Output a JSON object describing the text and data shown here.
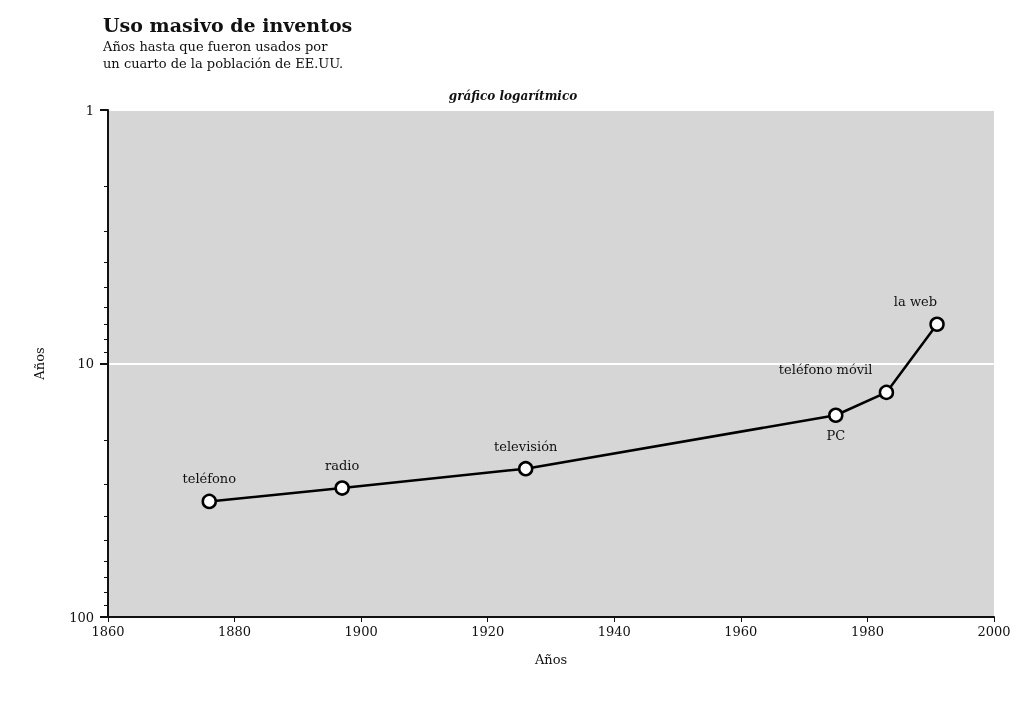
{
  "chart_data": {
    "type": "line",
    "title": "Uso masivo de inventos",
    "subtitle": "Años hasta que fueron usados por\nun cuarto de la población de EE.UU.",
    "xlabel": "Años",
    "ylabel": "Años",
    "x": [
      1876,
      1897,
      1926,
      1975,
      1983,
      1991
    ],
    "series": [
      {
        "color": "#000000",
        "values": [
          35,
          31,
          26,
          16,
          13,
          7
        ]
      }
    ],
    "xlim": [
      1860,
      2000
    ],
    "xticks": [
      1860,
      1880,
      1900,
      1920,
      1940,
      1960,
      1980,
      2000
    ],
    "ylim": [
      100,
      1
    ],
    "yticks": [
      1,
      10,
      100
    ],
    "log": "y",
    "grid": "y",
    "marker": "circle",
    "line_style": "solid",
    "annotations": [
      "gráfico logarítmico",
      {
        "text": "teléfono",
        "x": 1876,
        "y": 35
      },
      {
        "text": "radio",
        "x": 1897,
        "y": 31
      },
      {
        "text": "televisión",
        "x": 1926,
        "y": 26
      },
      {
        "text": "PC",
        "x": 1975,
        "y": 16
      },
      {
        "text": "teléfono móvil",
        "x": 1983,
        "y": 13
      },
      {
        "text": "la web",
        "x": 1991,
        "y": 7
      }
    ]
  }
}
